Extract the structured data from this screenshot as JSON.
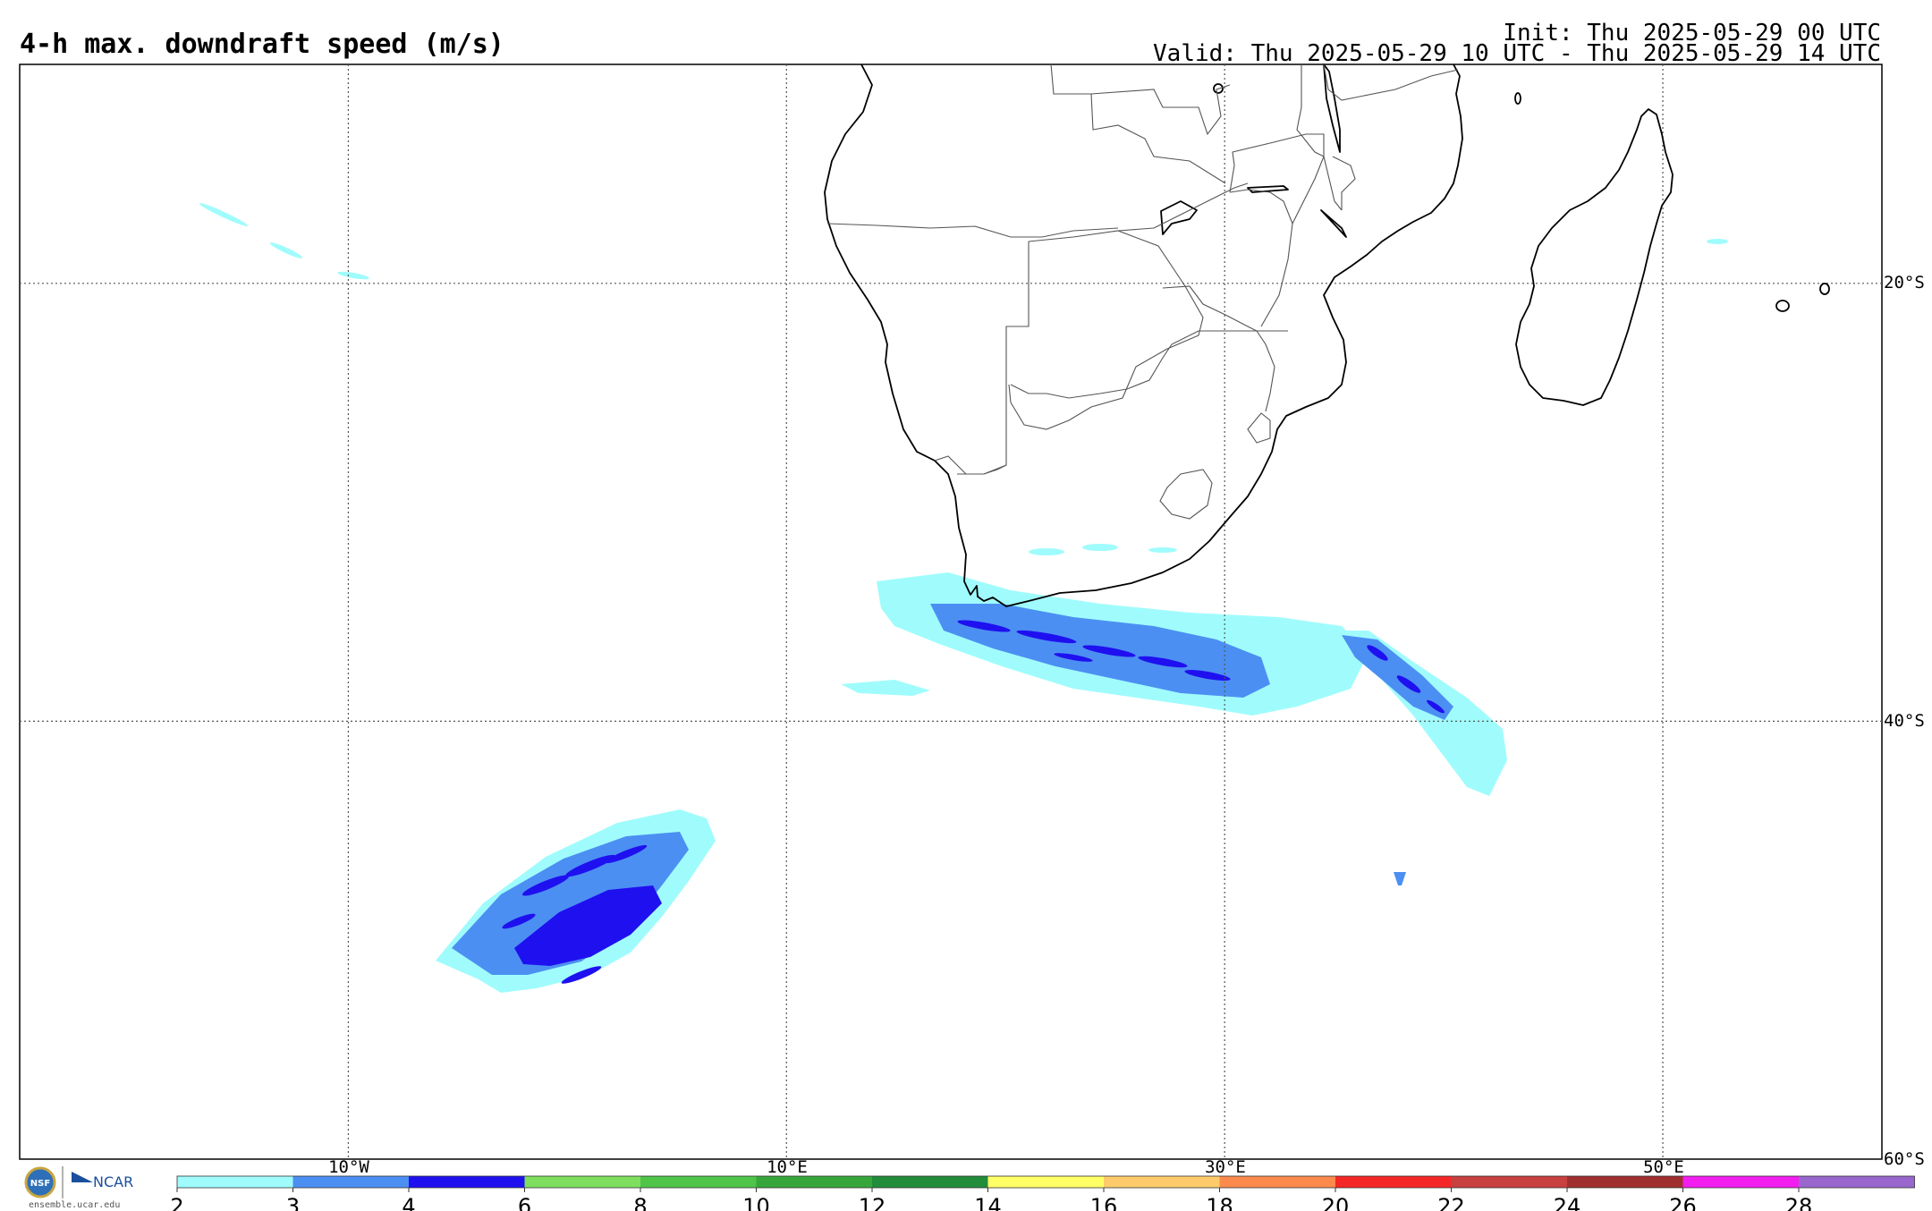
{
  "header": {
    "title": "4-h max. downdraft speed (m/s)",
    "init": "Init: Thu 2025-05-29 00 UTC",
    "valid": "Valid: Thu 2025-05-29 10 UTC - Thu 2025-05-29 14 UTC"
  },
  "map": {
    "lon_range": [
      -25,
      60
    ],
    "lat_range": [
      -60,
      -10
    ],
    "lon_ticks": [
      {
        "value": -10,
        "label": "10°W"
      },
      {
        "value": 10,
        "label": "10°E"
      },
      {
        "value": 30,
        "label": "30°E"
      },
      {
        "value": 50,
        "label": "50°E"
      }
    ],
    "lat_ticks": [
      {
        "value": -20,
        "label": "20°S"
      },
      {
        "value": -40,
        "label": "40°S"
      },
      {
        "value": -60,
        "label": "60°S"
      }
    ],
    "gridlines": "dotted"
  },
  "colorbar": {
    "levels": [
      "2",
      "3",
      "4",
      "6",
      "8",
      "10",
      "12",
      "14",
      "16",
      "18",
      "20",
      "22",
      "24",
      "26",
      "28"
    ],
    "colors": [
      "#a0fcfc",
      "#4c8ff2",
      "#1f10f0",
      "#7edf5e",
      "#4ec549",
      "#36a63b",
      "#218c3a",
      "#ffff66",
      "#fecb6a",
      "#fc8a4c",
      "#f52726",
      "#c84040",
      "#a12e2e",
      "#f21ef0",
      "#9866cc"
    ]
  },
  "logo": {
    "org1": "NSF",
    "org2": "NCAR",
    "url": "ensemble.ucar.edu"
  }
}
